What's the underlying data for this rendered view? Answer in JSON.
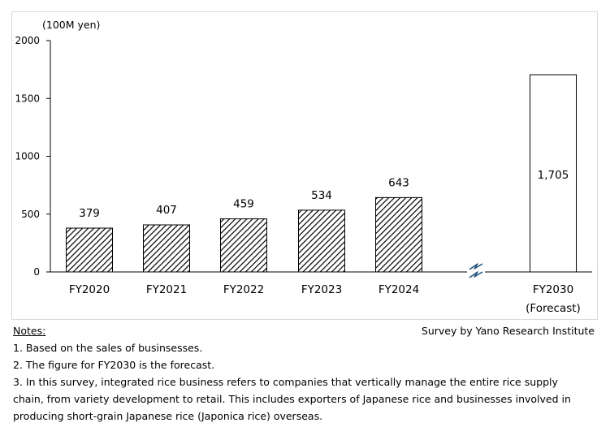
{
  "chart_data": {
    "type": "bar",
    "unit_label": "(100M yen)",
    "categories": [
      "FY2020",
      "FY2021",
      "FY2022",
      "FY2023",
      "FY2024",
      "FY2030"
    ],
    "category_sublabels": [
      "",
      "",
      "",
      "",
      "",
      "(Forecast)"
    ],
    "values": [
      379,
      407,
      459,
      534,
      643,
      1705
    ],
    "value_labels": [
      "379",
      "407",
      "459",
      "534",
      "643",
      "1,705"
    ],
    "forecast_index": 5,
    "axis_break_after_index": 4,
    "ylim": [
      0,
      2000
    ],
    "yticks": [
      0,
      500,
      1000,
      1500,
      2000
    ],
    "ytick_labels": [
      "0",
      "500",
      "1000",
      "1500",
      "2000"
    ],
    "grid": false,
    "bar_style": {
      "actual": "diagonal-hatch",
      "forecast": "white"
    },
    "colors": {
      "bar_edge": "#000000",
      "break_mark": "#1f4e79",
      "hatch": "#000000"
    }
  },
  "notes": {
    "title": "Notes:",
    "lines": [
      "1.  Based on the sales of businsesses.",
      "2.  The figure for FY2030 is the forecast.",
      "3.  In this survey, integrated rice business refers to companies that vertically manage the entire rice supply",
      "chain, from variety development to retail. This includes exporters of Japanese rice and businesses involved in",
      "producing short-grain Japanese rice (Japonica rice) overseas."
    ]
  },
  "source": "Survey by Yano Research Institute"
}
